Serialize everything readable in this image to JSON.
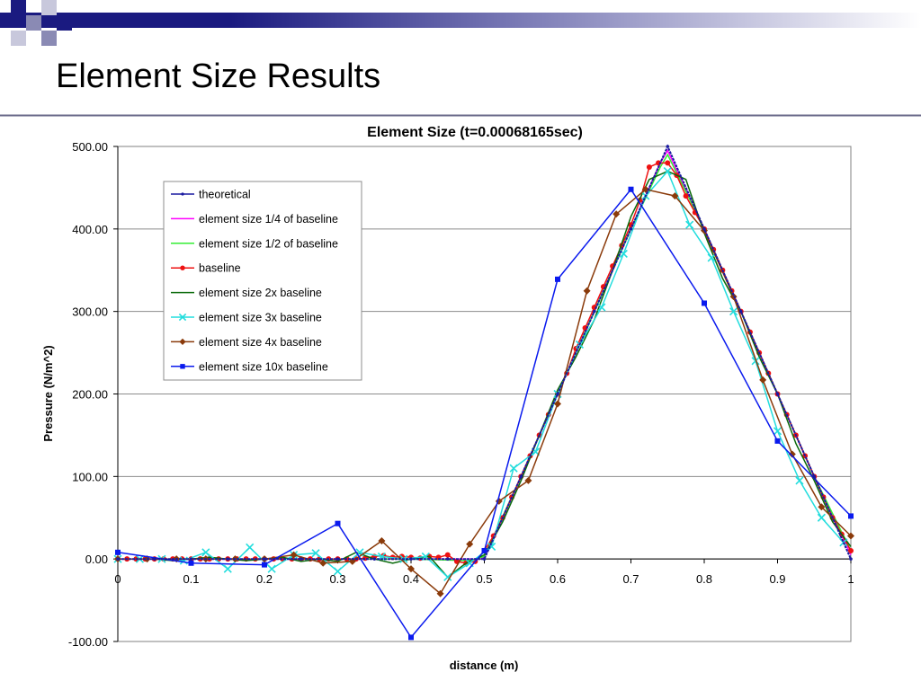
{
  "slide": {
    "title": "Element Size Results",
    "theme_colors": {
      "square_dark": "#1a1a80",
      "square_mid": "#8a8ab4",
      "square_light": "#c8c8dc",
      "band_dark": "#1a1a80",
      "band_light": "#ffffff",
      "rule": "#6a6a8a"
    }
  },
  "chart_data": {
    "type": "line",
    "title": "Element Size (t=0.00068165sec)",
    "xlabel": "distance (m)",
    "ylabel": "Pressure (N/m^2)",
    "xlim": [
      0,
      1
    ],
    "ylim": [
      -100,
      500
    ],
    "x_ticks": [
      0,
      0.1,
      0.2,
      0.3,
      0.4,
      0.5,
      0.6,
      0.7,
      0.8,
      0.9,
      1
    ],
    "x_tick_labels": [
      "0",
      "0.1",
      "0.2",
      "0.3",
      "0.4",
      "0.5",
      "0.6",
      "0.7",
      "0.8",
      "0.9",
      "1"
    ],
    "y_ticks": [
      -100,
      0,
      100,
      200,
      300,
      400,
      500
    ],
    "y_tick_labels": [
      "-100.00",
      "0.00",
      "100.00",
      "200.00",
      "300.00",
      "400.00",
      "500.00"
    ],
    "grid": "horizontal",
    "legend_position": "top-left inside",
    "series": [
      {
        "name": "theoretical",
        "color": "#1a1aa0",
        "marker": "small-dot",
        "x": [
          0,
          0.05,
          0.1,
          0.15,
          0.2,
          0.25,
          0.3,
          0.35,
          0.4,
          0.45,
          0.5,
          0.55,
          0.6,
          0.65,
          0.7,
          0.75,
          0.8,
          0.85,
          0.9,
          0.95,
          1
        ],
        "y": [
          0,
          0,
          0,
          0,
          0,
          0,
          0,
          0,
          0,
          0,
          0,
          100,
          200,
          300,
          400,
          500,
          400,
          300,
          200,
          100,
          0
        ]
      },
      {
        "name": "element size 1/4 of baseline",
        "color": "#ff00ff",
        "marker": "none",
        "x": [
          0,
          0.1,
          0.2,
          0.3,
          0.4,
          0.49,
          0.5,
          0.55,
          0.6,
          0.65,
          0.7,
          0.74,
          0.75,
          0.8,
          0.85,
          0.9,
          0.95,
          1
        ],
        "y": [
          0,
          0,
          0,
          0,
          0,
          0,
          2,
          100,
          200,
          300,
          400,
          480,
          495,
          400,
          300,
          200,
          100,
          5
        ]
      },
      {
        "name": "element size 1/2 of baseline",
        "color": "#33ee33",
        "marker": "none",
        "x": [
          0,
          0.1,
          0.2,
          0.3,
          0.4,
          0.48,
          0.5,
          0.55,
          0.6,
          0.65,
          0.7,
          0.74,
          0.75,
          0.8,
          0.85,
          0.9,
          0.95,
          1
        ],
        "y": [
          0,
          0,
          0,
          0,
          0,
          -2,
          3,
          100,
          200,
          300,
          400,
          475,
          490,
          400,
          300,
          200,
          100,
          10
        ]
      },
      {
        "name": "baseline",
        "color": "#ee1111",
        "marker": "circle",
        "x": [
          0,
          0.0125,
          0.025,
          0.0375,
          0.05,
          0.0625,
          0.075,
          0.0875,
          0.1,
          0.1125,
          0.125,
          0.1375,
          0.15,
          0.1625,
          0.175,
          0.1875,
          0.2,
          0.2125,
          0.225,
          0.2375,
          0.25,
          0.2625,
          0.275,
          0.2875,
          0.3,
          0.3125,
          0.325,
          0.3375,
          0.35,
          0.3625,
          0.375,
          0.3875,
          0.4,
          0.4125,
          0.425,
          0.4375,
          0.45,
          0.4625,
          0.475,
          0.4875,
          0.5,
          0.5125,
          0.525,
          0.5375,
          0.55,
          0.5625,
          0.575,
          0.5875,
          0.6,
          0.6125,
          0.625,
          0.6375,
          0.65,
          0.6625,
          0.675,
          0.6875,
          0.7,
          0.7125,
          0.725,
          0.7375,
          0.75,
          0.7625,
          0.775,
          0.7875,
          0.8,
          0.8125,
          0.825,
          0.8375,
          0.85,
          0.8625,
          0.875,
          0.8875,
          0.9,
          0.9125,
          0.925,
          0.9375,
          0.95,
          0.9625,
          0.975,
          0.9875,
          1
        ],
        "y": [
          0,
          0,
          0,
          0,
          0,
          0,
          0,
          0,
          0,
          0,
          0,
          0,
          0,
          0,
          0,
          0,
          0,
          0,
          0,
          0,
          0,
          0,
          0,
          0,
          0,
          0,
          0,
          1,
          3,
          4,
          2,
          3,
          2,
          1,
          3,
          2,
          5,
          -3,
          -5,
          -3,
          10,
          28,
          50,
          75,
          100,
          125,
          150,
          175,
          200,
          225,
          255,
          280,
          305,
          330,
          355,
          380,
          405,
          435,
          475,
          480,
          480,
          465,
          440,
          420,
          400,
          375,
          350,
          325,
          300,
          275,
          250,
          225,
          200,
          175,
          150,
          125,
          100,
          75,
          50,
          30,
          10
        ]
      },
      {
        "name": "element size 2x baseline",
        "color": "#0a6a0a",
        "marker": "none",
        "x": [
          0,
          0.025,
          0.05,
          0.075,
          0.1,
          0.125,
          0.15,
          0.175,
          0.2,
          0.225,
          0.25,
          0.275,
          0.3,
          0.325,
          0.35,
          0.375,
          0.4,
          0.425,
          0.45,
          0.475,
          0.5,
          0.525,
          0.55,
          0.575,
          0.6,
          0.625,
          0.65,
          0.675,
          0.7,
          0.725,
          0.75,
          0.775,
          0.8,
          0.825,
          0.85,
          0.875,
          0.9,
          0.925,
          0.95,
          0.975,
          1
        ],
        "y": [
          0,
          0,
          0,
          -2,
          0,
          2,
          0,
          -2,
          0,
          2,
          -3,
          0,
          -3,
          8,
          0,
          -5,
          0,
          3,
          -22,
          -5,
          5,
          45,
          95,
          150,
          205,
          245,
          290,
          350,
          415,
          460,
          470,
          460,
          395,
          340,
          300,
          245,
          200,
          140,
          95,
          45,
          15
        ]
      },
      {
        "name": "element size 3x baseline",
        "color": "#22dddd",
        "marker": "x",
        "x": [
          0,
          0.03,
          0.06,
          0.09,
          0.12,
          0.15,
          0.18,
          0.21,
          0.24,
          0.27,
          0.3,
          0.33,
          0.36,
          0.39,
          0.42,
          0.45,
          0.48,
          0.51,
          0.54,
          0.57,
          0.6,
          0.63,
          0.66,
          0.69,
          0.72,
          0.75,
          0.78,
          0.81,
          0.84,
          0.87,
          0.9,
          0.93,
          0.96,
          0.99
        ],
        "y": [
          0,
          0,
          0,
          -2,
          8,
          -12,
          14,
          -12,
          5,
          7,
          -15,
          8,
          3,
          0,
          3,
          -22,
          -5,
          15,
          110,
          130,
          200,
          260,
          305,
          370,
          440,
          470,
          405,
          365,
          300,
          240,
          155,
          95,
          50,
          20
        ]
      },
      {
        "name": "element size 4x baseline",
        "color": "#8a3a0a",
        "marker": "diamond",
        "x": [
          0,
          0.04,
          0.08,
          0.12,
          0.16,
          0.2,
          0.24,
          0.28,
          0.32,
          0.36,
          0.4,
          0.44,
          0.48,
          0.52,
          0.56,
          0.6,
          0.64,
          0.68,
          0.72,
          0.76,
          0.8,
          0.84,
          0.88,
          0.92,
          0.96,
          1
        ],
        "y": [
          0,
          0,
          0,
          0,
          0,
          0,
          5,
          -5,
          -3,
          22,
          -12,
          -42,
          18,
          70,
          95,
          188,
          325,
          418,
          448,
          440,
          398,
          318,
          217,
          127,
          63,
          28
        ]
      },
      {
        "name": "element size 10x baseline",
        "color": "#0a1aee",
        "marker": "square",
        "x": [
          0,
          0.1,
          0.2,
          0.3,
          0.4,
          0.5,
          0.6,
          0.7,
          0.8,
          0.9,
          1
        ],
        "y": [
          8,
          -5,
          -7,
          43,
          -95,
          10,
          339,
          448,
          310,
          143,
          52
        ]
      }
    ]
  }
}
